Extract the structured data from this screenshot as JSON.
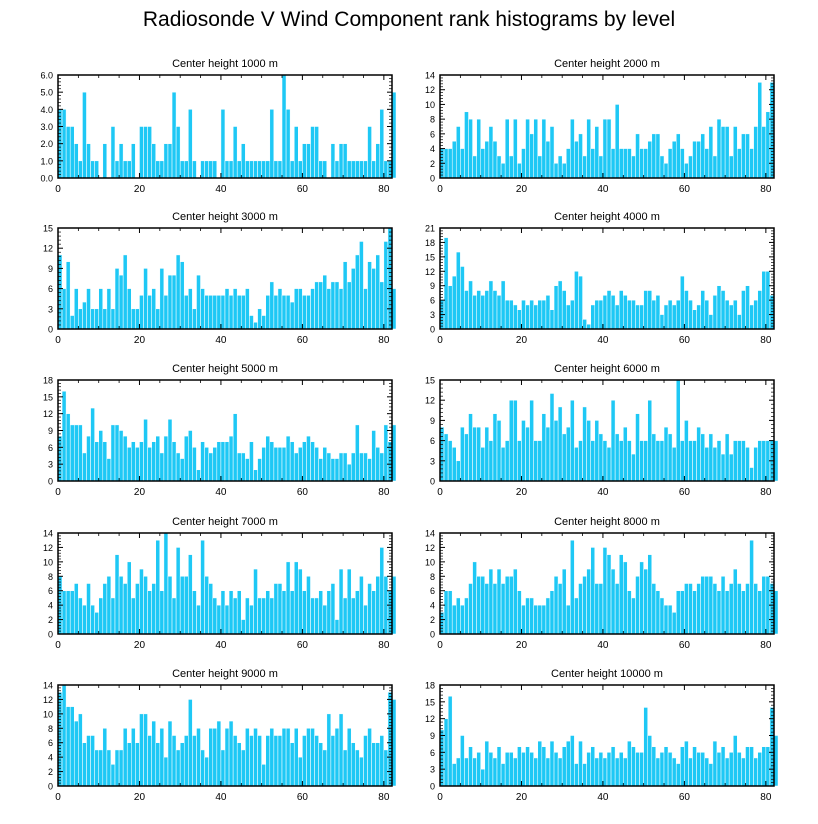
{
  "title": "Radiosonde V Wind Component rank histograms by level",
  "colors": {
    "bar": "#1ec8f5",
    "bar_edge": "#ffffff",
    "axis": "#000000"
  },
  "chart_data": [
    {
      "type": "bar",
      "title": "Center height 1000 m",
      "xlabel": "",
      "ylabel": "",
      "xlim": [
        0,
        82
      ],
      "xticks": [
        0,
        20,
        40,
        60,
        80
      ],
      "ylim": [
        0,
        6
      ],
      "yticks": [
        0,
        1,
        2,
        3,
        4,
        5,
        6
      ],
      "ytick_labels": [
        "0.0",
        "1.0",
        "2.0",
        "3.0",
        "4.0",
        "5.0",
        "6.0"
      ],
      "values": [
        4,
        4,
        3,
        3,
        2,
        1,
        5,
        2,
        1,
        1,
        0,
        2,
        0,
        3,
        1,
        2,
        1,
        1,
        2,
        0,
        3,
        3,
        3,
        2,
        1,
        1,
        2,
        2,
        5,
        3,
        1,
        1,
        4,
        1,
        0,
        1,
        1,
        1,
        1,
        0,
        4,
        1,
        1,
        3,
        1,
        2,
        1,
        1,
        1,
        1,
        1,
        1,
        4,
        1,
        1,
        6,
        4,
        1,
        3,
        1,
        2,
        2,
        3,
        3,
        1,
        1,
        0,
        2,
        1,
        2,
        2,
        1,
        1,
        1,
        1,
        1,
        3,
        1,
        2,
        4,
        1,
        1,
        5
      ]
    },
    {
      "type": "bar",
      "title": "Center height 2000 m",
      "xlabel": "",
      "ylabel": "",
      "xlim": [
        0,
        82
      ],
      "xticks": [
        0,
        20,
        40,
        60,
        80
      ],
      "ylim": [
        0,
        14
      ],
      "yticks": [
        0,
        2,
        4,
        6,
        8,
        10,
        12,
        14
      ],
      "ytick_labels": [
        "0",
        "2",
        "4",
        "6",
        "8",
        "10",
        "12",
        "14"
      ],
      "values": [
        4,
        4,
        4,
        5,
        7,
        4,
        9,
        8,
        3,
        8,
        4,
        5,
        7,
        5,
        3,
        2,
        8,
        3,
        8,
        2,
        4,
        8,
        6,
        8,
        3,
        8,
        5,
        7,
        2,
        3,
        2,
        4,
        8,
        5,
        6,
        3,
        8,
        4,
        7,
        3,
        8,
        8,
        4,
        10,
        4,
        4,
        4,
        3,
        6,
        4,
        4,
        5,
        6,
        6,
        3,
        2,
        4,
        5,
        6,
        4,
        2,
        3,
        5,
        5,
        6,
        4,
        7,
        3,
        8,
        7,
        7,
        3,
        7,
        4,
        6,
        6,
        4,
        7,
        13,
        7,
        9,
        13
      ]
    },
    {
      "type": "bar",
      "title": "Center height 3000 m",
      "xlabel": "",
      "ylabel": "",
      "xlim": [
        0,
        82
      ],
      "xticks": [
        0,
        20,
        40,
        60,
        80
      ],
      "ylim": [
        0,
        15
      ],
      "yticks": [
        0,
        3,
        6,
        9,
        12,
        15
      ],
      "ytick_labels": [
        "0",
        "3",
        "6",
        "9",
        "12",
        "15"
      ],
      "values": [
        11,
        6,
        10,
        2,
        6,
        3,
        4,
        6,
        3,
        3,
        6,
        3,
        6,
        3,
        9,
        8,
        11,
        6,
        3,
        3,
        5,
        9,
        5,
        6,
        3,
        9,
        5,
        8,
        8,
        11,
        10,
        5,
        6,
        3,
        8,
        6,
        5,
        5,
        5,
        5,
        5,
        6,
        5,
        6,
        5,
        5,
        6,
        2,
        1,
        3,
        2,
        5,
        7,
        5,
        6,
        5,
        5,
        4,
        6,
        6,
        5,
        5,
        6,
        7,
        7,
        8,
        6,
        7,
        7,
        6,
        10,
        7,
        9,
        11,
        13,
        6,
        10,
        9,
        11,
        7,
        13,
        15,
        6
      ]
    },
    {
      "type": "bar",
      "title": "Center height 4000 m",
      "xlabel": "",
      "ylabel": "",
      "xlim": [
        0,
        82
      ],
      "xticks": [
        0,
        20,
        40,
        60,
        80
      ],
      "ylim": [
        0,
        21
      ],
      "yticks": [
        0,
        3,
        6,
        9,
        12,
        15,
        18,
        21
      ],
      "ytick_labels": [
        "0",
        "3",
        "6",
        "9",
        "12",
        "15",
        "18",
        "21"
      ],
      "values": [
        6,
        19,
        9,
        11,
        16,
        13,
        8,
        10,
        7,
        8,
        7,
        8,
        10,
        8,
        7,
        10,
        6,
        6,
        5,
        4,
        6,
        5,
        6,
        5,
        6,
        6,
        7,
        4,
        9,
        10,
        8,
        5,
        6,
        12,
        11,
        2,
        1,
        5,
        6,
        6,
        7,
        8,
        7,
        5,
        8,
        7,
        6,
        6,
        5,
        5,
        8,
        8,
        6,
        7,
        3,
        5,
        6,
        5,
        6,
        11,
        8,
        6,
        4,
        5,
        8,
        6,
        3,
        7,
        9,
        8,
        6,
        5,
        6,
        3,
        8,
        9,
        5,
        6,
        8,
        12,
        12,
        7
      ]
    },
    {
      "type": "bar",
      "title": "Center height 5000 m",
      "xlabel": "",
      "ylabel": "",
      "xlim": [
        0,
        82
      ],
      "xticks": [
        0,
        20,
        40,
        60,
        80
      ],
      "ylim": [
        0,
        18
      ],
      "yticks": [
        0,
        3,
        6,
        9,
        12,
        15,
        18
      ],
      "ytick_labels": [
        "0",
        "3",
        "6",
        "9",
        "12",
        "15",
        "18"
      ],
      "values": [
        8,
        16,
        12,
        10,
        10,
        10,
        5,
        8,
        13,
        7,
        9,
        7,
        4,
        10,
        10,
        9,
        8,
        6,
        7,
        6,
        7,
        11,
        6,
        7,
        8,
        5,
        8,
        11,
        7,
        5,
        4,
        8,
        9,
        6,
        2,
        7,
        6,
        5,
        6,
        7,
        7,
        7,
        8,
        12,
        5,
        5,
        4,
        7,
        2,
        4,
        6,
        8,
        7,
        6,
        6,
        6,
        8,
        7,
        5,
        6,
        7,
        8,
        7,
        6,
        4,
        6,
        5,
        4,
        4,
        5,
        5,
        3,
        5,
        10,
        5,
        5,
        4,
        9,
        6,
        5,
        10,
        7,
        10
      ]
    },
    {
      "type": "bar",
      "title": "Center height 6000 m",
      "xlabel": "",
      "ylabel": "",
      "xlim": [
        0,
        82
      ],
      "xticks": [
        0,
        20,
        40,
        60,
        80
      ],
      "ylim": [
        0,
        15
      ],
      "yticks": [
        0,
        3,
        6,
        9,
        12,
        15
      ],
      "ytick_labels": [
        "0",
        "3",
        "6",
        "9",
        "12",
        "15"
      ],
      "values": [
        8,
        7,
        6,
        5,
        3,
        8,
        7,
        10,
        8,
        8,
        5,
        8,
        6,
        10,
        9,
        5,
        6,
        12,
        12,
        6,
        9,
        8,
        12,
        6,
        6,
        10,
        8,
        13,
        9,
        11,
        7,
        8,
        12,
        5,
        6,
        11,
        9,
        6,
        9,
        7,
        6,
        5,
        12,
        7,
        6,
        8,
        6,
        4,
        10,
        6,
        6,
        12,
        7,
        6,
        6,
        8,
        7,
        5,
        15,
        6,
        9,
        6,
        6,
        8,
        7,
        5,
        7,
        5,
        6,
        4,
        7,
        4,
        6,
        6,
        6,
        5,
        2,
        5,
        6,
        6,
        6,
        6,
        6
      ]
    },
    {
      "type": "bar",
      "title": "Center height 7000 m",
      "xlabel": "",
      "ylabel": "",
      "xlim": [
        0,
        82
      ],
      "xticks": [
        0,
        20,
        40,
        60,
        80
      ],
      "ylim": [
        0,
        14
      ],
      "yticks": [
        0,
        2,
        4,
        6,
        8,
        10,
        12,
        14
      ],
      "ytick_labels": [
        "0",
        "2",
        "4",
        "6",
        "8",
        "10",
        "12",
        "14"
      ],
      "values": [
        8,
        6,
        6,
        6,
        7,
        5,
        4,
        7,
        4,
        3,
        5,
        7,
        8,
        5,
        11,
        8,
        7,
        10,
        5,
        7,
        9,
        8,
        6,
        7,
        13,
        6,
        14,
        8,
        5,
        12,
        8,
        8,
        11,
        6,
        4,
        13,
        8,
        7,
        5,
        4,
        6,
        4,
        6,
        5,
        6,
        2,
        5,
        4,
        9,
        5,
        5,
        6,
        5,
        7,
        7,
        6,
        10,
        6,
        10,
        9,
        6,
        8,
        5,
        5,
        6,
        4,
        6,
        7,
        2,
        9,
        5,
        9,
        5,
        6,
        8,
        4,
        7,
        6,
        8,
        12,
        8,
        6,
        8
      ]
    },
    {
      "type": "bar",
      "title": "Center height 8000 m",
      "xlabel": "",
      "ylabel": "",
      "xlim": [
        0,
        82
      ],
      "xticks": [
        0,
        20,
        40,
        60,
        80
      ],
      "ylim": [
        0,
        14
      ],
      "yticks": [
        0,
        2,
        4,
        6,
        8,
        10,
        12,
        14
      ],
      "ytick_labels": [
        "0",
        "2",
        "4",
        "6",
        "8",
        "10",
        "12",
        "14"
      ],
      "values": [
        3,
        6,
        6,
        4,
        5,
        4,
        5,
        7,
        10,
        8,
        8,
        7,
        9,
        7,
        9,
        7,
        8,
        8,
        9,
        6,
        4,
        5,
        5,
        4,
        4,
        4,
        5,
        6,
        8,
        7,
        9,
        4,
        13,
        5,
        7,
        8,
        9,
        12,
        7,
        7,
        12,
        11,
        9,
        7,
        11,
        10,
        6,
        5,
        8,
        10,
        9,
        11,
        7,
        6,
        5,
        4,
        4,
        3,
        6,
        6,
        7,
        7,
        6,
        7,
        8,
        8,
        8,
        7,
        6,
        8,
        6,
        7,
        9,
        7,
        6,
        7,
        13,
        7,
        6,
        8,
        8,
        7,
        6
      ]
    },
    {
      "type": "bar",
      "title": "Center height 9000 m",
      "xlabel": "",
      "ylabel": "",
      "xlim": [
        0,
        82
      ],
      "xticks": [
        0,
        20,
        40,
        60,
        80
      ],
      "ylim": [
        0,
        14
      ],
      "yticks": [
        0,
        2,
        4,
        6,
        8,
        10,
        12,
        14
      ],
      "ytick_labels": [
        "0",
        "2",
        "4",
        "6",
        "8",
        "10",
        "12",
        "14"
      ],
      "values": [
        13,
        14,
        11,
        11,
        9,
        10,
        6,
        7,
        7,
        5,
        5,
        8,
        5,
        3,
        5,
        5,
        8,
        6,
        8,
        6,
        10,
        10,
        7,
        9,
        6,
        8,
        4,
        9,
        7,
        5,
        6,
        7,
        12,
        7,
        8,
        5,
        4,
        8,
        8,
        9,
        5,
        8,
        9,
        7,
        6,
        5,
        8,
        7,
        8,
        7,
        3,
        7,
        8,
        7,
        7,
        8,
        8,
        6,
        8,
        4,
        7,
        8,
        8,
        7,
        6,
        5,
        10,
        7,
        8,
        10,
        5,
        8,
        6,
        5,
        4,
        7,
        8,
        6,
        6,
        7,
        5,
        13,
        12
      ]
    },
    {
      "type": "bar",
      "title": "Center height 10000 m",
      "xlabel": "",
      "ylabel": "",
      "xlim": [
        0,
        82
      ],
      "xticks": [
        0,
        20,
        40,
        60,
        80
      ],
      "ylim": [
        0,
        18
      ],
      "yticks": [
        0,
        3,
        6,
        9,
        12,
        15,
        18
      ],
      "ytick_labels": [
        "0",
        "3",
        "6",
        "9",
        "12",
        "15",
        "18"
      ],
      "values": [
        10,
        12,
        16,
        4,
        5,
        9,
        5,
        7,
        5,
        6,
        3,
        8,
        6,
        5,
        7,
        4,
        6,
        6,
        5,
        7,
        6,
        7,
        6,
        5,
        8,
        7,
        5,
        8,
        6,
        5,
        7,
        8,
        9,
        4,
        8,
        4,
        6,
        7,
        5,
        6,
        5,
        6,
        7,
        5,
        6,
        5,
        8,
        7,
        6,
        6,
        14,
        9,
        7,
        5,
        6,
        7,
        6,
        5,
        4,
        7,
        8,
        5,
        7,
        6,
        6,
        5,
        4,
        8,
        6,
        7,
        5,
        6,
        9,
        6,
        5,
        7,
        7,
        5,
        6,
        7,
        7,
        14,
        9
      ]
    }
  ]
}
